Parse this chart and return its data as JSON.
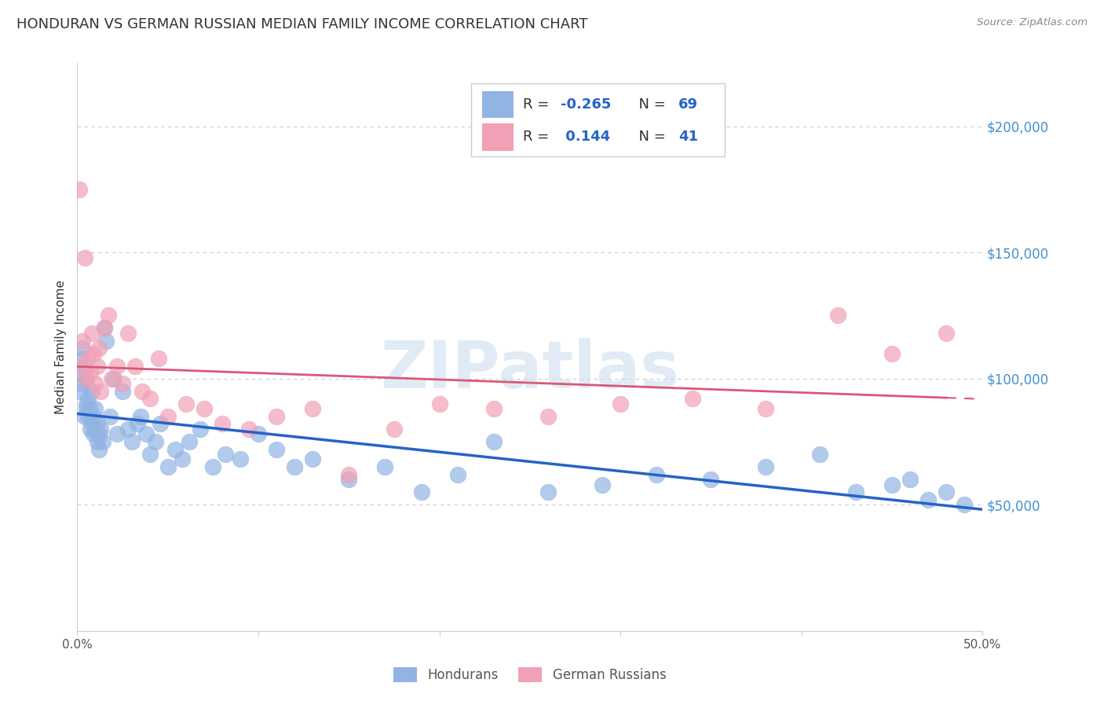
{
  "title": "HONDURAN VS GERMAN RUSSIAN MEDIAN FAMILY INCOME CORRELATION CHART",
  "source": "Source: ZipAtlas.com",
  "ylabel": "Median Family Income",
  "watermark": "ZIPatlas",
  "y_ticks": [
    50000,
    100000,
    150000,
    200000
  ],
  "y_tick_labels": [
    "$50,000",
    "$100,000",
    "$150,000",
    "$200,000"
  ],
  "x_range": [
    0.0,
    0.5
  ],
  "y_range": [
    0,
    225000
  ],
  "honduran_color": "#92B4E3",
  "honduran_line_color": "#2563C7",
  "german_russian_color": "#F2A0B5",
  "german_russian_line_color": "#D95878",
  "background_color": "#FFFFFF",
  "legend_text_color": "#2563C7",
  "grid_color": "#CCCCCC",
  "title_fontsize": 13,
  "axis_label_fontsize": 11,
  "tick_fontsize": 11,
  "honduran_scatter_x": [
    0.001,
    0.002,
    0.002,
    0.003,
    0.003,
    0.004,
    0.004,
    0.005,
    0.005,
    0.005,
    0.006,
    0.006,
    0.007,
    0.007,
    0.008,
    0.008,
    0.009,
    0.009,
    0.01,
    0.01,
    0.011,
    0.011,
    0.012,
    0.012,
    0.013,
    0.014,
    0.015,
    0.016,
    0.018,
    0.02,
    0.022,
    0.025,
    0.028,
    0.03,
    0.033,
    0.035,
    0.038,
    0.04,
    0.043,
    0.046,
    0.05,
    0.054,
    0.058,
    0.062,
    0.068,
    0.075,
    0.082,
    0.09,
    0.1,
    0.11,
    0.12,
    0.13,
    0.15,
    0.17,
    0.19,
    0.21,
    0.23,
    0.26,
    0.29,
    0.32,
    0.35,
    0.38,
    0.41,
    0.43,
    0.45,
    0.46,
    0.47,
    0.48,
    0.49
  ],
  "honduran_scatter_y": [
    102000,
    108000,
    95000,
    98000,
    112000,
    85000,
    105000,
    90000,
    88000,
    100000,
    85000,
    92000,
    80000,
    88000,
    82000,
    95000,
    78000,
    85000,
    80000,
    88000,
    75000,
    82000,
    78000,
    72000,
    80000,
    75000,
    120000,
    115000,
    85000,
    100000,
    78000,
    95000,
    80000,
    75000,
    82000,
    85000,
    78000,
    70000,
    75000,
    82000,
    65000,
    72000,
    68000,
    75000,
    80000,
    65000,
    70000,
    68000,
    78000,
    72000,
    65000,
    68000,
    60000,
    65000,
    55000,
    62000,
    75000,
    55000,
    58000,
    62000,
    60000,
    65000,
    70000,
    55000,
    58000,
    60000,
    52000,
    55000,
    50000
  ],
  "german_russian_scatter_x": [
    0.001,
    0.002,
    0.003,
    0.004,
    0.005,
    0.006,
    0.007,
    0.008,
    0.009,
    0.01,
    0.011,
    0.012,
    0.013,
    0.015,
    0.017,
    0.019,
    0.022,
    0.025,
    0.028,
    0.032,
    0.036,
    0.04,
    0.045,
    0.05,
    0.06,
    0.07,
    0.08,
    0.095,
    0.11,
    0.13,
    0.15,
    0.175,
    0.2,
    0.23,
    0.26,
    0.3,
    0.34,
    0.38,
    0.42,
    0.45,
    0.48
  ],
  "german_russian_scatter_y": [
    175000,
    105000,
    115000,
    148000,
    100000,
    108000,
    102000,
    118000,
    110000,
    98000,
    105000,
    112000,
    95000,
    120000,
    125000,
    100000,
    105000,
    98000,
    118000,
    105000,
    95000,
    92000,
    108000,
    85000,
    90000,
    88000,
    82000,
    80000,
    85000,
    88000,
    62000,
    80000,
    90000,
    88000,
    85000,
    90000,
    92000,
    88000,
    125000,
    110000,
    118000
  ]
}
